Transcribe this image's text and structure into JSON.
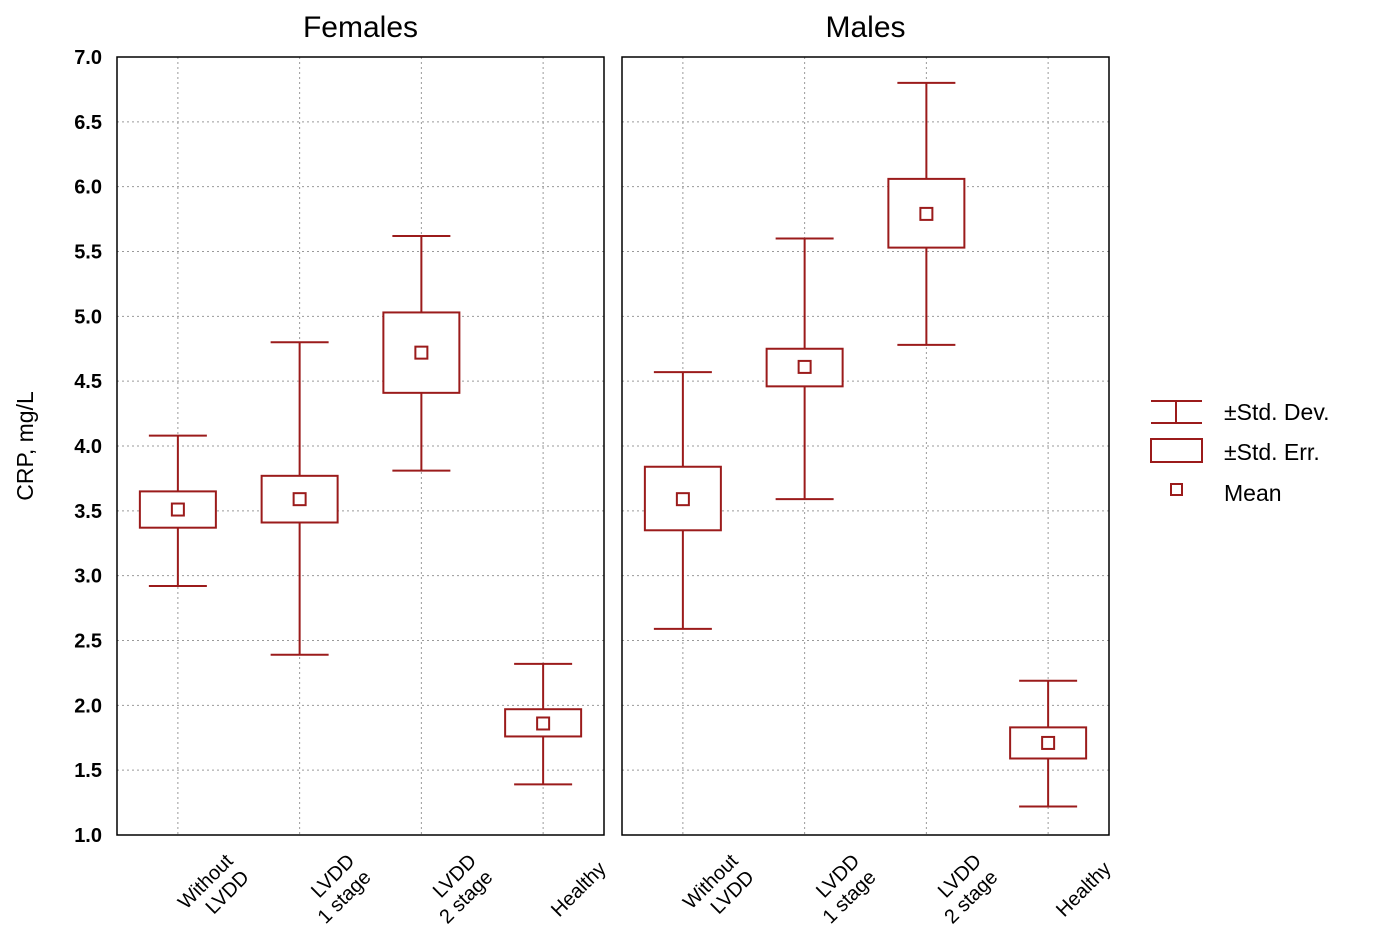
{
  "chart_data": {
    "type": "box",
    "ylabel": "CRP, mg/L",
    "ylim": [
      1.0,
      7.0
    ],
    "yticks": [
      "7.0",
      "6.5",
      "6.0",
      "5.5",
      "5.0",
      "4.5",
      "4.0",
      "3.5",
      "3.0",
      "2.5",
      "2.0",
      "1.5",
      "1.0"
    ],
    "yticks_values": [
      7.0,
      6.5,
      6.0,
      5.5,
      5.0,
      4.5,
      4.0,
      3.5,
      3.0,
      2.5,
      2.0,
      1.5,
      1.0
    ],
    "grid": true,
    "legend_position": "right",
    "color": "#9b1b1b",
    "categories": [
      {
        "line1": "Without",
        "line2": "LVDD"
      },
      {
        "line1": "LVDD",
        "line2": "1 stage"
      },
      {
        "line1": "LVDD",
        "line2": "2 stage"
      },
      {
        "line1": "Healthy",
        "line2": ""
      }
    ],
    "panels": [
      {
        "title": "Females",
        "groups": [
          {
            "mean": 3.51,
            "se_low": 3.37,
            "se_high": 3.65,
            "sd_low": 2.92,
            "sd_high": 4.08
          },
          {
            "mean": 3.59,
            "se_low": 3.41,
            "se_high": 3.77,
            "sd_low": 2.39,
            "sd_high": 4.8
          },
          {
            "mean": 4.72,
            "se_low": 4.41,
            "se_high": 5.03,
            "sd_low": 3.81,
            "sd_high": 5.62
          },
          {
            "mean": 1.86,
            "se_low": 1.76,
            "se_high": 1.97,
            "sd_low": 1.39,
            "sd_high": 2.32
          }
        ]
      },
      {
        "title": "Males",
        "groups": [
          {
            "mean": 3.59,
            "se_low": 3.35,
            "se_high": 3.84,
            "sd_low": 2.59,
            "sd_high": 4.57
          },
          {
            "mean": 4.61,
            "se_low": 4.46,
            "se_high": 4.75,
            "sd_low": 3.59,
            "sd_high": 5.6
          },
          {
            "mean": 5.79,
            "se_low": 5.53,
            "se_high": 6.06,
            "sd_low": 4.78,
            "sd_high": 6.8
          },
          {
            "mean": 1.71,
            "se_low": 1.59,
            "se_high": 1.83,
            "sd_low": 1.22,
            "sd_high": 2.19
          }
        ]
      }
    ],
    "legend": [
      {
        "label": "±Std. Dev.",
        "icon": "whisker-icon"
      },
      {
        "label": "±Std. Err.",
        "icon": "box-icon"
      },
      {
        "label": "Mean",
        "icon": "mean-marker-icon"
      }
    ]
  }
}
